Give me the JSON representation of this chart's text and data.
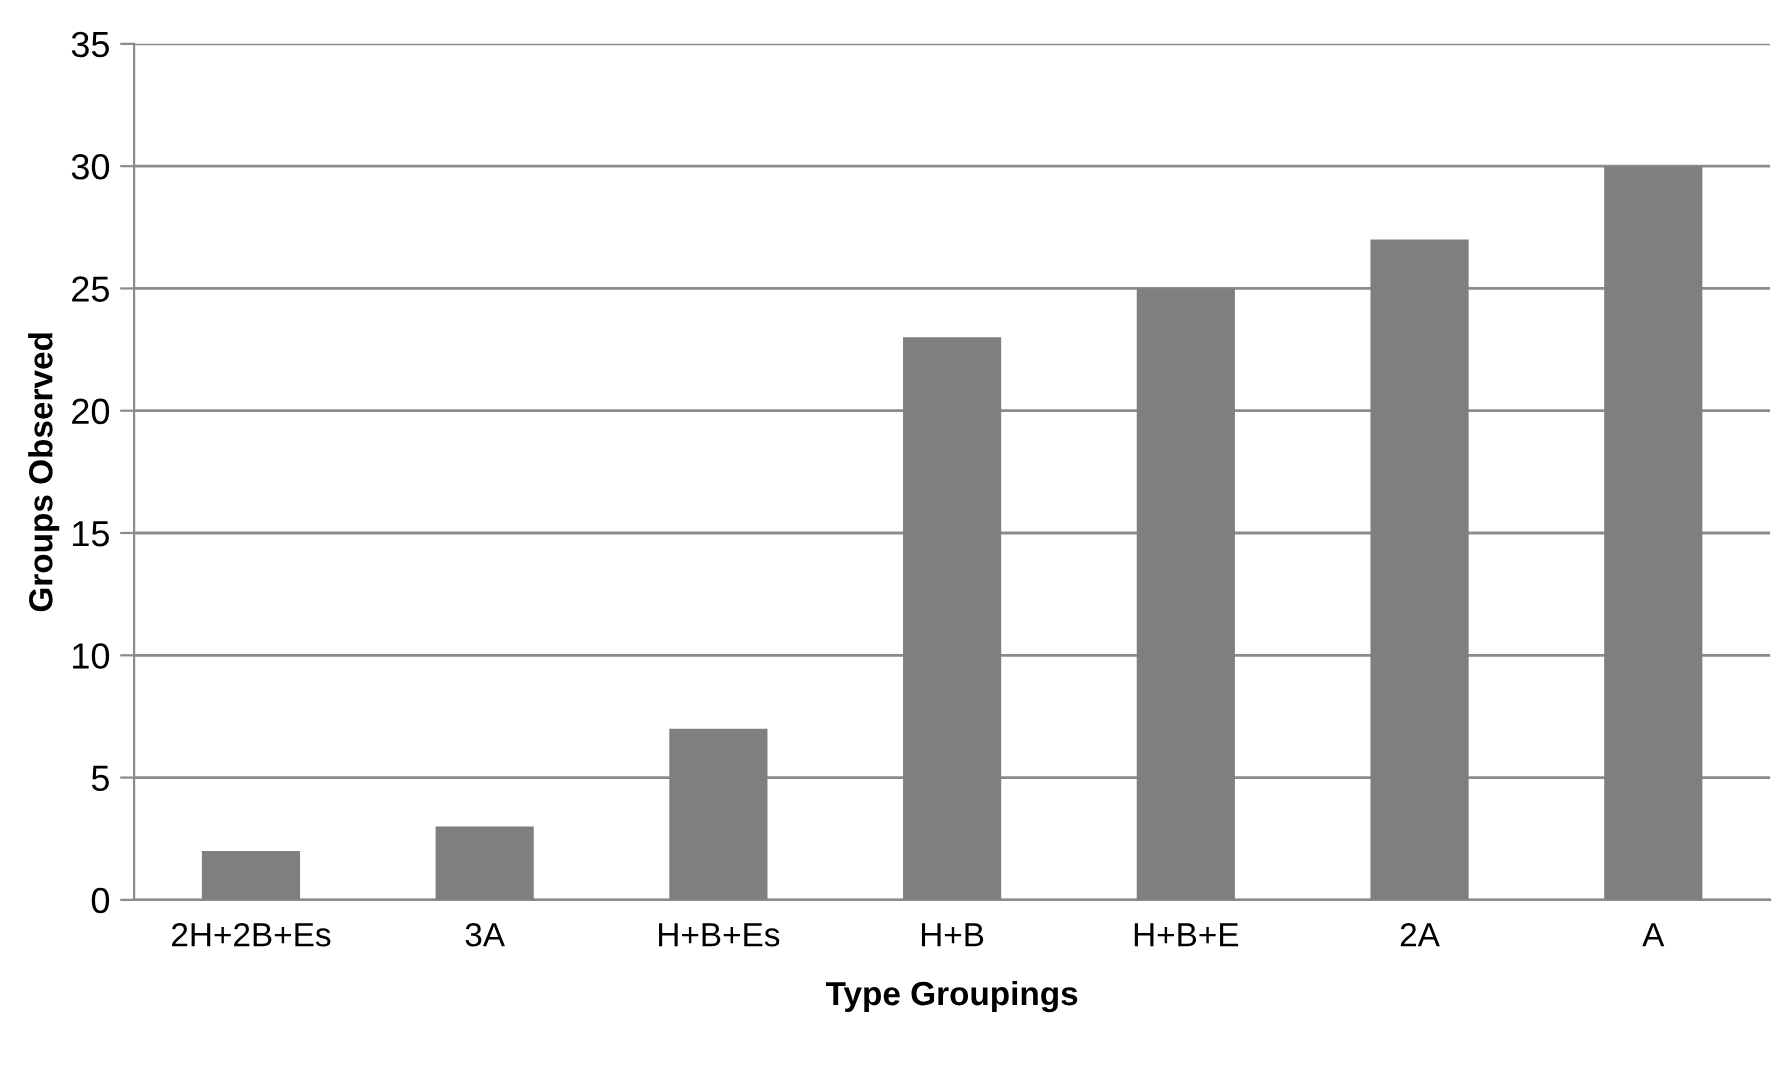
{
  "chart_data": {
    "type": "bar",
    "xlabel": "Type Groupings",
    "ylabel": "Groups Observed",
    "categories": [
      "2H+2B+Es",
      "3A",
      "H+B+Es",
      "H+B",
      "H+B+E",
      "2A",
      "A"
    ],
    "values": [
      2,
      3,
      7,
      23,
      25,
      27,
      30
    ],
    "color": "#7f7f7f",
    "ylim": [
      0,
      35
    ],
    "yticks": [
      0,
      5,
      10,
      15,
      20,
      25,
      30,
      35
    ],
    "grid": "y",
    "legend": false
  }
}
